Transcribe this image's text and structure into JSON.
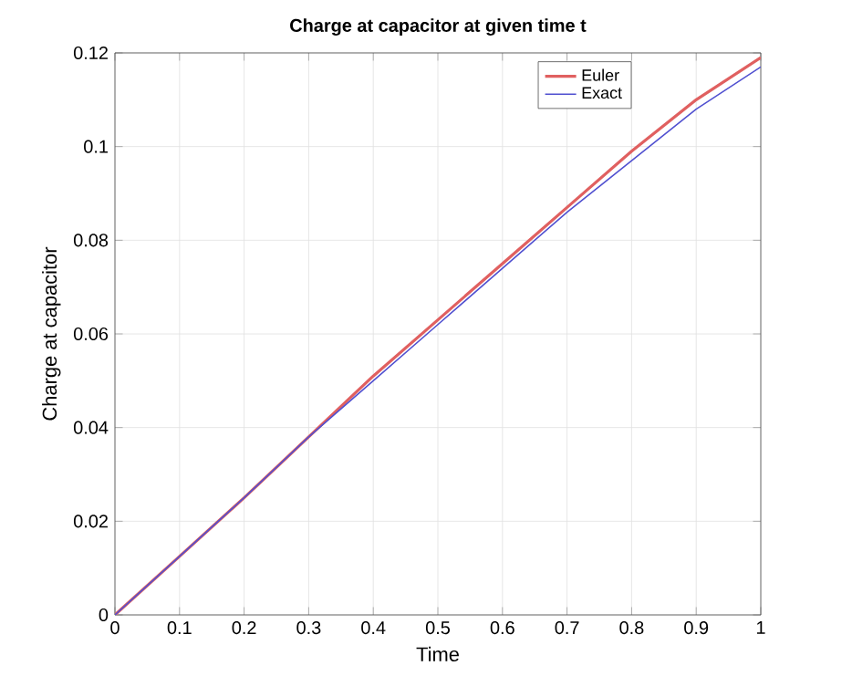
{
  "chart_data": {
    "type": "line",
    "title": "Charge at capacitor at given time t",
    "xlabel": "Time",
    "ylabel": "Charge at capacitor",
    "x": [
      0,
      0.1,
      0.2,
      0.3,
      0.4,
      0.5,
      0.6,
      0.7,
      0.8,
      0.9,
      1.0
    ],
    "series": [
      {
        "name": "Euler",
        "color": "#e06060",
        "values": [
          0,
          0.0125,
          0.025,
          0.038,
          0.051,
          0.063,
          0.075,
          0.087,
          0.099,
          0.11,
          0.119
        ]
      },
      {
        "name": "Exact",
        "color": "#5050d0",
        "values": [
          0,
          0.0125,
          0.025,
          0.038,
          0.05,
          0.062,
          0.074,
          0.086,
          0.097,
          0.108,
          0.117
        ]
      }
    ],
    "xlim": [
      0,
      1
    ],
    "ylim": [
      0,
      0.12
    ],
    "xticks": [
      0,
      0.1,
      0.2,
      0.3,
      0.4,
      0.5,
      0.6,
      0.7,
      0.8,
      0.9,
      1
    ],
    "yticks": [
      0,
      0.02,
      0.04,
      0.06,
      0.08,
      0.1,
      0.12
    ],
    "grid": true,
    "legend": "top right"
  }
}
